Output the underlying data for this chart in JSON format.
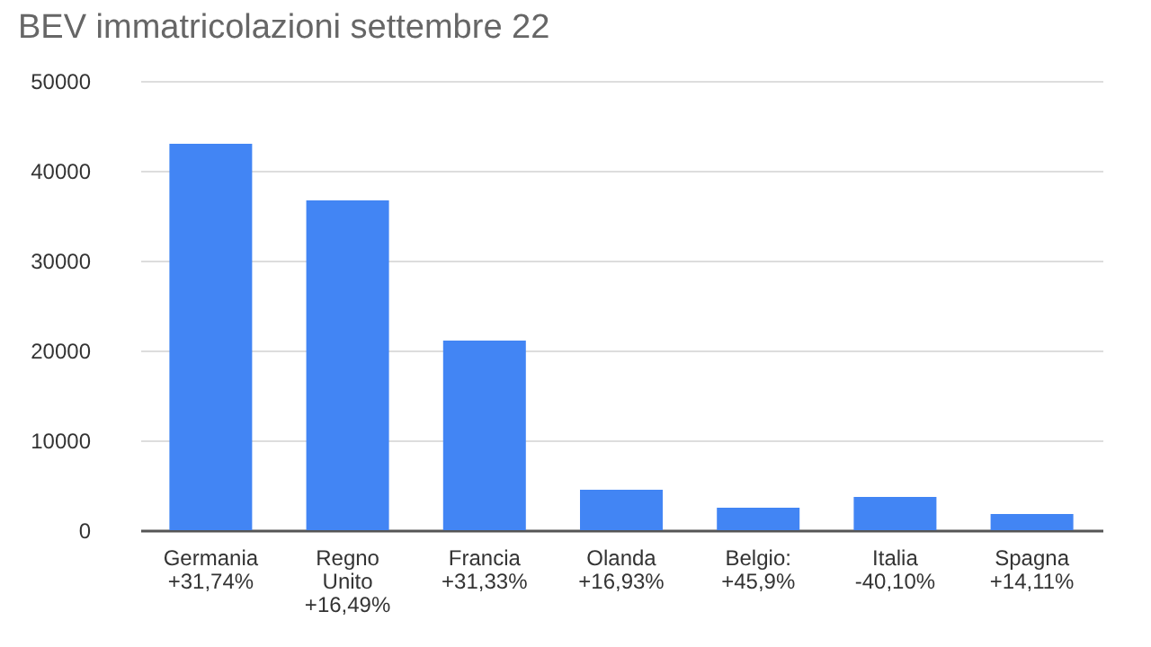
{
  "chart_data": {
    "type": "bar",
    "title": "BEV immatricolazioni settembre 22",
    "categories": [
      "Germania\n+31,74%",
      "Regno\nUnito\n+16,49%",
      "Francia\n+31,33%",
      "Olanda\n+16,93%",
      "Belgio:\n+45,9%",
      "Italia\n-40,10%",
      "Spagna\n+14,11%"
    ],
    "values": [
      43000,
      36700,
      21100,
      4500,
      2500,
      3700,
      1800
    ],
    "color": "#4285f4",
    "ylim": [
      0,
      50000
    ],
    "yticks": [
      0,
      10000,
      20000,
      30000,
      40000,
      50000
    ],
    "grid": "y"
  }
}
